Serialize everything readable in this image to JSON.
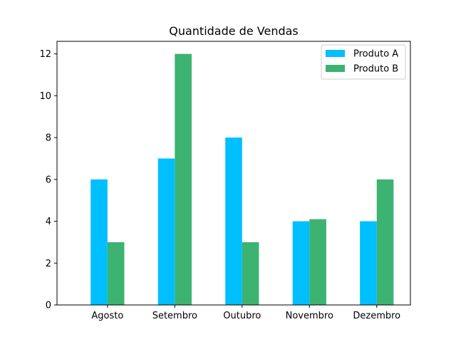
{
  "chart_data": {
    "type": "bar",
    "title": "Quantidade de Vendas",
    "xlabel": "",
    "ylabel": "",
    "categories": [
      "Agosto",
      "Setembro",
      "Outubro",
      "Novembro",
      "Dezembro"
    ],
    "series": [
      {
        "name": "Produto A",
        "color": "#00bfff",
        "values": [
          6,
          7,
          8,
          4,
          4
        ]
      },
      {
        "name": "Produto B",
        "color": "#3cb371",
        "values": [
          3,
          12,
          3,
          4.1,
          6
        ]
      }
    ],
    "ylim": [
      0,
      12.6
    ],
    "yticks": [
      0,
      2,
      4,
      6,
      8,
      10,
      12
    ],
    "grid": false,
    "legend": "top-right"
  }
}
